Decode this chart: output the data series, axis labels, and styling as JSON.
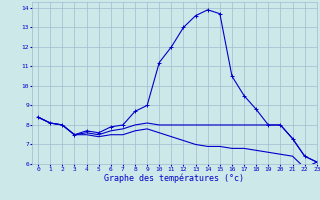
{
  "title": "Graphe des températures (°c)",
  "background_color": "#cce8e8",
  "grid_color": "#a0bcd0",
  "line_color": "#0000cc",
  "xlim": [
    -0.5,
    23
  ],
  "ylim": [
    6,
    14.3
  ],
  "yticks": [
    6,
    7,
    8,
    9,
    10,
    11,
    12,
    13,
    14
  ],
  "xticks": [
    0,
    1,
    2,
    3,
    4,
    5,
    6,
    7,
    8,
    9,
    10,
    11,
    12,
    13,
    14,
    15,
    16,
    17,
    18,
    19,
    20,
    21,
    22,
    23
  ],
  "line1_x": [
    0,
    1,
    2,
    3,
    4,
    5,
    6,
    7,
    8,
    9,
    10,
    11,
    12,
    13,
    14,
    15,
    16,
    17,
    18,
    19,
    20,
    21,
    22,
    23
  ],
  "line1_y": [
    8.4,
    8.1,
    8.0,
    7.5,
    7.7,
    7.6,
    7.9,
    8.0,
    8.7,
    9.0,
    11.2,
    12.0,
    13.0,
    13.6,
    13.9,
    13.7,
    10.5,
    9.5,
    8.8,
    8.0,
    8.0,
    7.3,
    6.4,
    6.1
  ],
  "line2_x": [
    0,
    1,
    2,
    3,
    4,
    5,
    6,
    7,
    8,
    9,
    10,
    11,
    12,
    13,
    14,
    15,
    16,
    17,
    18,
    19,
    20,
    21,
    22,
    23
  ],
  "line2_y": [
    8.4,
    8.1,
    8.0,
    7.5,
    7.6,
    7.5,
    7.7,
    7.8,
    8.0,
    8.1,
    8.0,
    8.0,
    8.0,
    8.0,
    8.0,
    8.0,
    8.0,
    8.0,
    8.0,
    8.0,
    8.0,
    7.3,
    6.4,
    6.1
  ],
  "line3_x": [
    0,
    1,
    2,
    3,
    4,
    5,
    6,
    7,
    8,
    9,
    10,
    11,
    12,
    13,
    14,
    15,
    16,
    17,
    18,
    19,
    20,
    21,
    22,
    23
  ],
  "line3_y": [
    8.4,
    8.1,
    8.0,
    7.5,
    7.5,
    7.4,
    7.5,
    7.5,
    7.7,
    7.8,
    7.6,
    7.4,
    7.2,
    7.0,
    6.9,
    6.9,
    6.8,
    6.8,
    6.7,
    6.6,
    6.5,
    6.4,
    5.8,
    6.1
  ]
}
